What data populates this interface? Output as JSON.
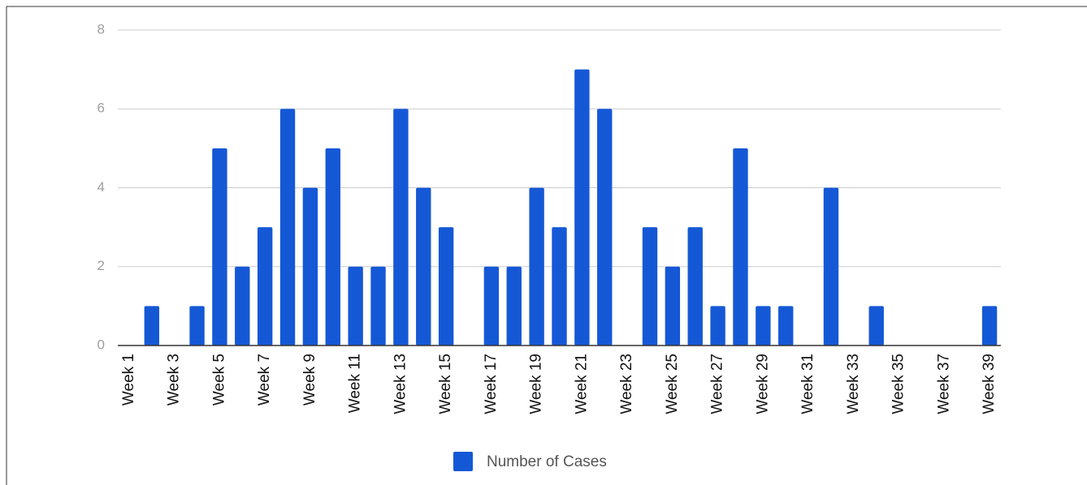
{
  "chart_data": {
    "type": "bar",
    "categories": [
      "Week 1",
      null,
      "Week 3",
      null,
      "Week 5",
      null,
      "Week 7",
      null,
      "Week 9",
      null,
      "Week 11",
      null,
      "Week 13",
      null,
      "Week 15",
      null,
      "Week 17",
      null,
      "Week 19",
      null,
      "Week 21",
      null,
      "Week 23",
      null,
      "Week 25",
      null,
      "Week 27",
      null,
      "Week 29",
      null,
      "Week 31",
      null,
      "Week 33",
      null,
      "Week 35",
      null,
      "Week 37",
      null,
      "Week 39"
    ],
    "series": [
      {
        "name": "Number of Cases",
        "color": "#1558d6",
        "values": [
          0,
          1,
          0,
          1,
          5,
          2,
          3,
          6,
          4,
          5,
          2,
          2,
          6,
          4,
          3,
          0,
          2,
          2,
          4,
          3,
          7,
          6,
          0,
          3,
          2,
          3,
          1,
          5,
          1,
          1,
          0,
          4,
          0,
          1,
          0,
          0,
          0,
          0,
          1
        ]
      }
    ],
    "ylim": [
      0,
      8
    ],
    "yticks": [
      0,
      2,
      4,
      6,
      8
    ],
    "grid": true,
    "legend": "bottom"
  }
}
